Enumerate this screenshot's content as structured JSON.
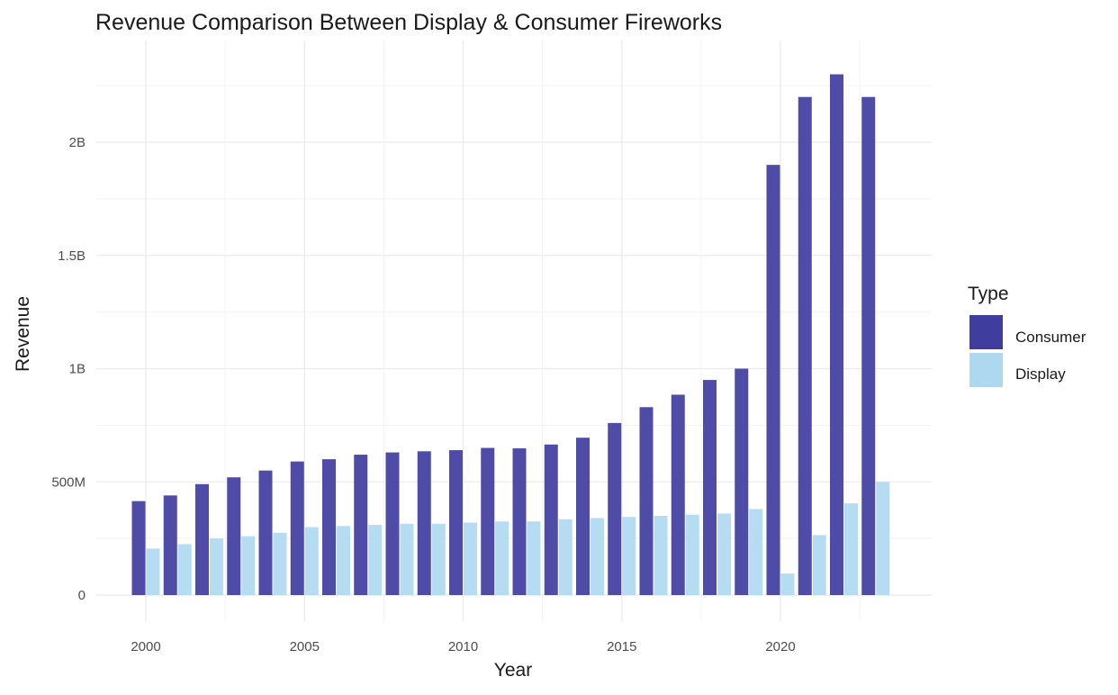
{
  "chart_data": {
    "type": "bar",
    "title": "Revenue Comparison Between Display & Consumer Fireworks",
    "xlabel": "Year",
    "ylabel": "Revenue",
    "x": [
      2000,
      2001,
      2002,
      2003,
      2004,
      2005,
      2006,
      2007,
      2008,
      2009,
      2010,
      2011,
      2012,
      2013,
      2014,
      2015,
      2016,
      2017,
      2018,
      2019,
      2020,
      2021,
      2022,
      2023
    ],
    "x_ticks": [
      2000,
      2005,
      2010,
      2015,
      2020
    ],
    "x_tick_labels": [
      "2000",
      "2005",
      "2010",
      "2015",
      "2020"
    ],
    "y_ticks": [
      0,
      500000000,
      1000000000,
      1500000000,
      2000000000
    ],
    "y_tick_labels": [
      "0",
      "500M",
      "1B",
      "1.5B",
      "2B"
    ],
    "ylim": [
      0,
      2400000000
    ],
    "grid": true,
    "legend": {
      "title": "Type",
      "placement": "right",
      "entries": [
        "Consumer",
        "Display"
      ]
    },
    "series": [
      {
        "name": "Consumer",
        "color": "#3f3d9e",
        "values": [
          415000000,
          440000000,
          490000000,
          520000000,
          550000000,
          590000000,
          600000000,
          620000000,
          630000000,
          635000000,
          640000000,
          650000000,
          648000000,
          665000000,
          695000000,
          760000000,
          830000000,
          885000000,
          950000000,
          1000000000,
          1900000000,
          2200000000,
          2300000000,
          2200000000
        ]
      },
      {
        "name": "Display",
        "color": "#add8ef",
        "values": [
          205000000,
          225000000,
          250000000,
          260000000,
          275000000,
          300000000,
          305000000,
          310000000,
          315000000,
          315000000,
          320000000,
          325000000,
          325000000,
          335000000,
          340000000,
          345000000,
          350000000,
          355000000,
          360000000,
          380000000,
          95000000,
          265000000,
          405000000,
          500000000
        ]
      }
    ]
  }
}
